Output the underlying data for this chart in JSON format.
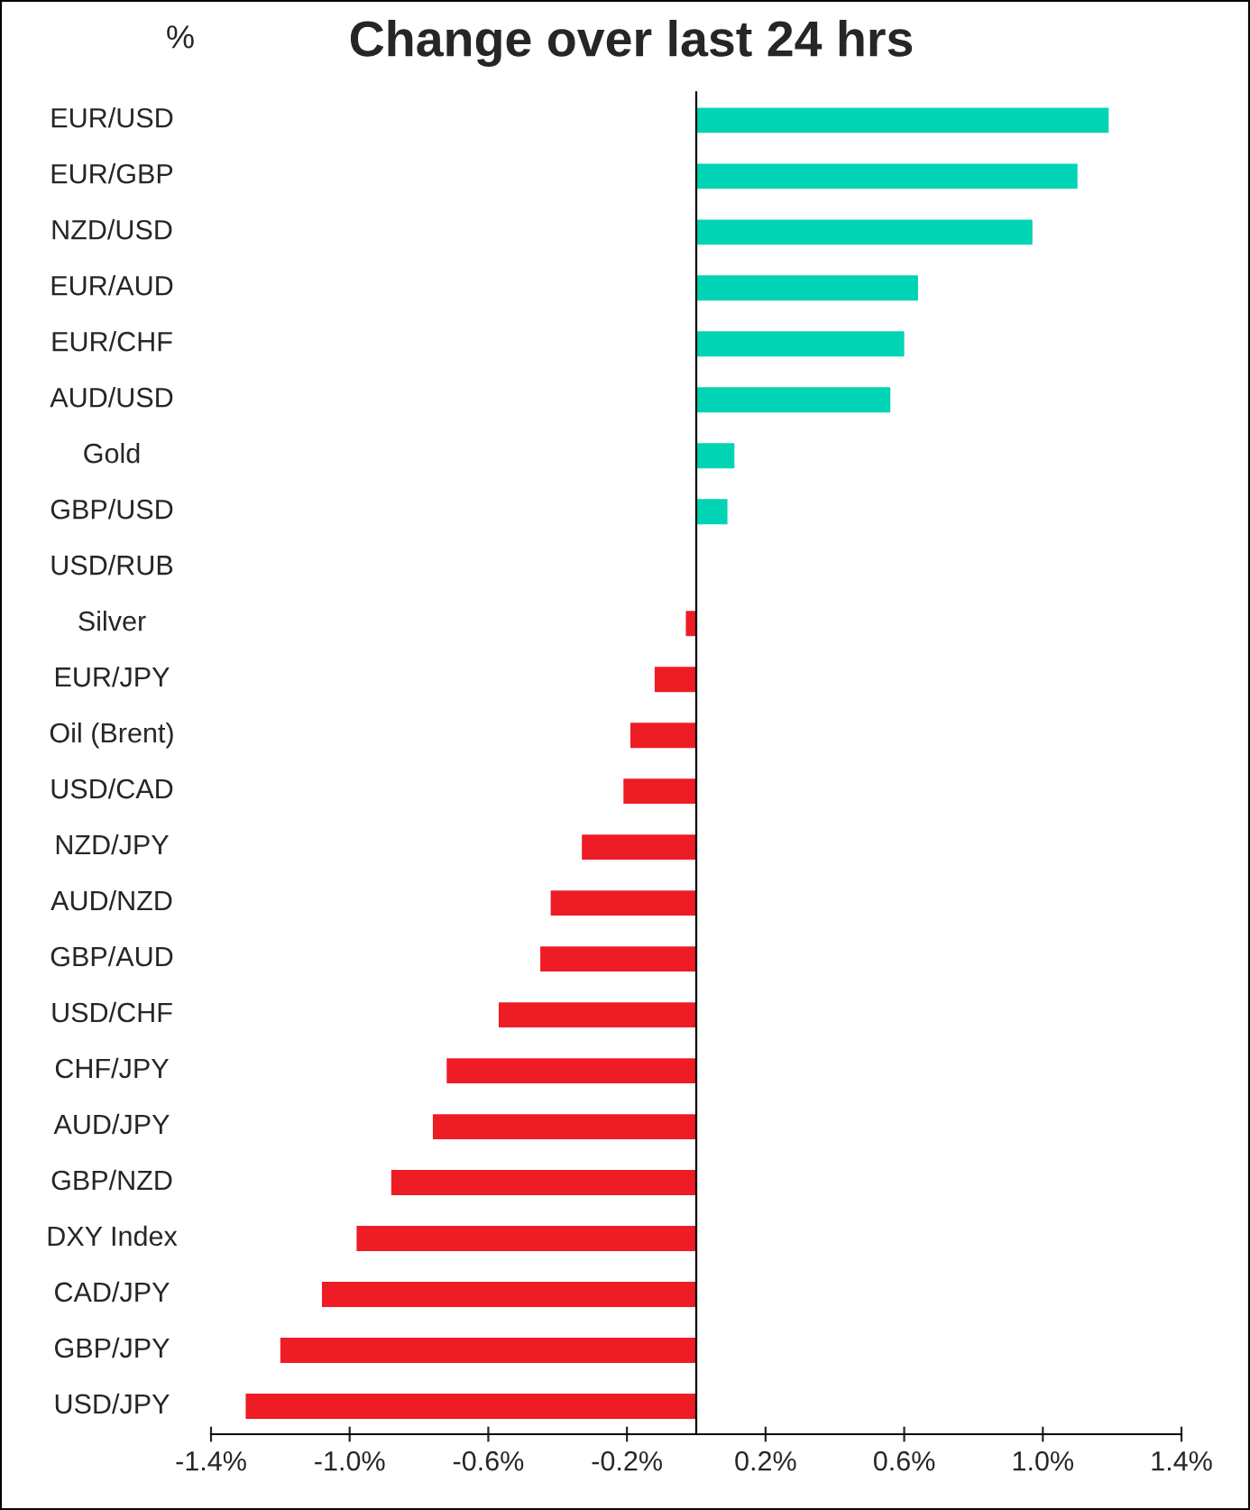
{
  "chart_data": {
    "type": "bar",
    "orientation": "horizontal",
    "title": "Change over last 24 hrs",
    "ylabel": "%",
    "categories": [
      "EUR/USD",
      "EUR/GBP",
      "NZD/USD",
      "EUR/AUD",
      "EUR/CHF",
      "AUD/USD",
      "Gold",
      "GBP/USD",
      "USD/RUB",
      "Silver",
      "EUR/JPY",
      "Oil (Brent)",
      "USD/CAD",
      "NZD/JPY",
      "AUD/NZD",
      "GBP/AUD",
      "USD/CHF",
      "CHF/JPY",
      "AUD/JPY",
      "GBP/NZD",
      "DXY Index",
      "CAD/JPY",
      "GBP/JPY",
      "USD/JPY"
    ],
    "values": [
      1.19,
      1.1,
      0.97,
      0.64,
      0.6,
      0.56,
      0.11,
      0.09,
      0,
      -0.03,
      -0.12,
      -0.19,
      -0.21,
      -0.33,
      -0.42,
      -0.45,
      -0.57,
      -0.72,
      -0.76,
      -0.88,
      -0.98,
      -1.08,
      -1.2,
      -1.3
    ],
    "colors": [
      "#00d4b4",
      "#00d4b4",
      "#00d4b4",
      "#00d4b4",
      "#00d4b4",
      "#00d4b4",
      "#00d4b4",
      "#00d4b4",
      "#00d4b4",
      "#ee1c25",
      "#ee1c25",
      "#ee1c25",
      "#ee1c25",
      "#ee1c25",
      "#ee1c25",
      "#ee1c25",
      "#ee1c25",
      "#ee1c25",
      "#ee1c25",
      "#ee1c25",
      "#ee1c25",
      "#ee1c25",
      "#ee1c25",
      "#ee1c25"
    ],
    "xlim": [
      -1.4,
      1.4
    ],
    "xticks": [
      {
        "value": -1.4,
        "label": "-1.4%"
      },
      {
        "value": -1.0,
        "label": "-1.0%"
      },
      {
        "value": -0.6,
        "label": "-0.6%"
      },
      {
        "value": -0.2,
        "label": "-0.2%"
      },
      {
        "value": 0.2,
        "label": "0.2%"
      },
      {
        "value": 0.6,
        "label": "0.6%"
      },
      {
        "value": 1.0,
        "label": "1.0%"
      },
      {
        "value": 1.4,
        "label": "1.4%"
      }
    ],
    "grid": false,
    "legend": false
  }
}
